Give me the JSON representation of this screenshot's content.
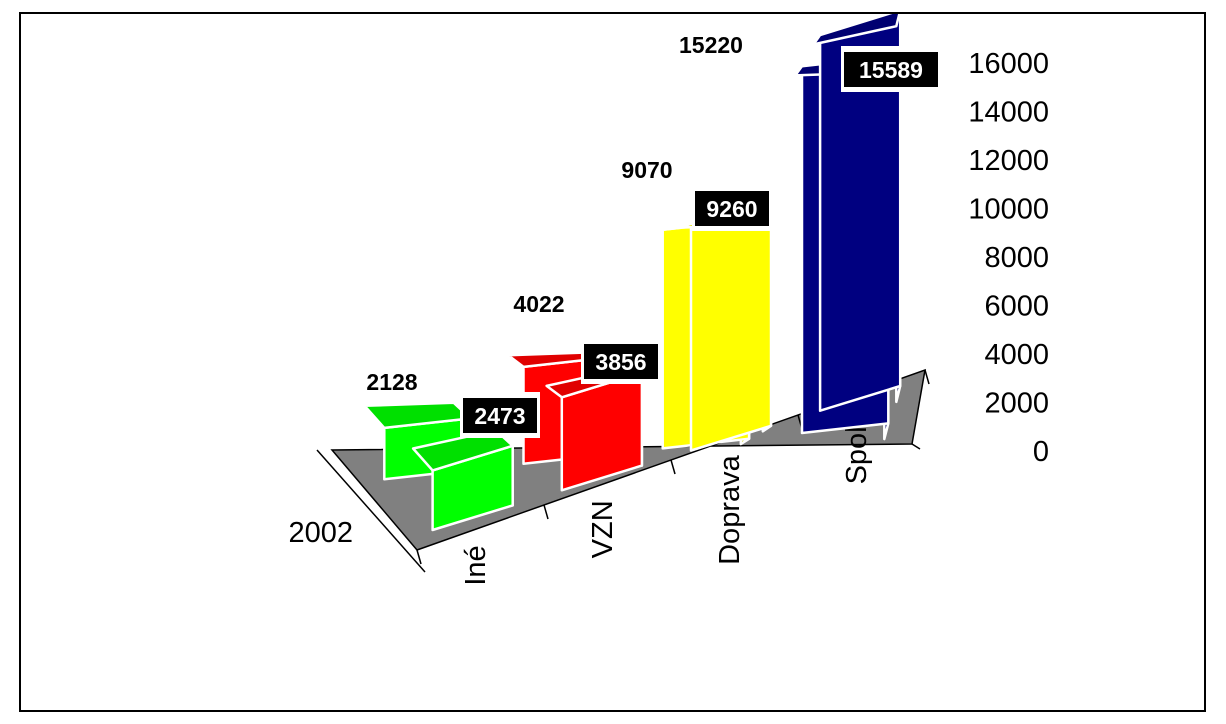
{
  "chart_data": {
    "type": "bar",
    "title": "",
    "categories": [
      "Iné",
      "VZN",
      "Doprava",
      "Spolu"
    ],
    "series": [
      {
        "name": "",
        "values": [
          2128,
          4022,
          9070,
          15220
        ]
      },
      {
        "name": "",
        "values": [
          2473,
          3856,
          9260,
          15589
        ]
      }
    ],
    "depth_labels": [
      "2002"
    ],
    "zlim": [
      0,
      16000
    ],
    "z_ticks": [
      "0",
      "2000",
      "4000",
      "6000",
      "8000",
      "10000",
      "12000",
      "14000",
      "16000"
    ],
    "data_labels": {
      "back": [
        "2128",
        "4022",
        "9070",
        "15220"
      ],
      "front": [
        "2473",
        "3856",
        "9260",
        "15589"
      ]
    },
    "colors": {
      "Iné": "#00ff00",
      "VZN": "#ff0000",
      "Doprava": "#ffff00",
      "Spolu": "#000080",
      "floor": "#808080",
      "front_label_bg": "#000000"
    }
  }
}
